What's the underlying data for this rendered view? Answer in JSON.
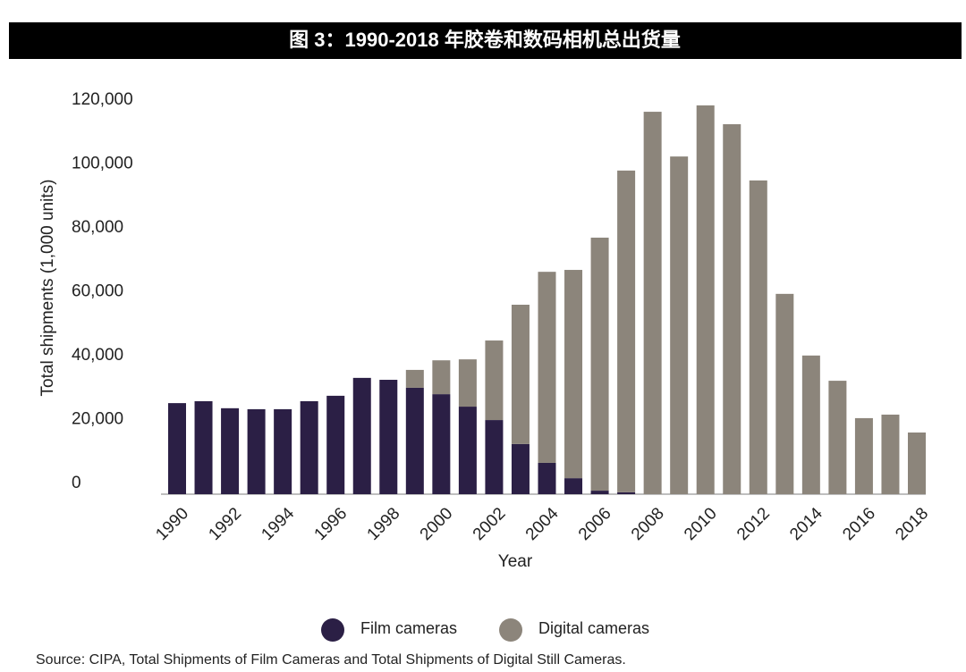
{
  "chart_data": {
    "type": "stacked-bar",
    "title": "图 3：1990-2018 年胶卷和数码相机总出货量",
    "y_label": "Total shipments (1,000 units)",
    "x_label": "Year",
    "source": "Source: CIPA, Total Shipments of Film Cameras and Total Shipments of Digital Still Cameras.",
    "categories": [
      "1990",
      null,
      "1992",
      null,
      "1994",
      null,
      "1996",
      null,
      "1998",
      null,
      "2000",
      null,
      "2002",
      null,
      "2004",
      null,
      "2006",
      null,
      "2008",
      null,
      "2010",
      null,
      "2012",
      null,
      "2014",
      null,
      "2016",
      null,
      "2018"
    ],
    "series": [
      {
        "name": "Film cameras",
        "color": "#2b1f45",
        "values": [
          28500,
          29100,
          26900,
          26600,
          26600,
          29100,
          30800,
          36400,
          35800,
          33300,
          31300,
          27400,
          23200,
          15700,
          9800,
          5000,
          1100,
          600,
          null,
          null,
          null,
          null,
          null,
          null,
          null,
          null,
          null,
          null,
          null
        ]
      },
      {
        "name": "Digital cameras",
        "color": "#8c857b",
        "values": [
          null,
          null,
          null,
          null,
          null,
          null,
          null,
          null,
          null,
          5600,
          10600,
          14800,
          24900,
          43600,
          59800,
          65200,
          79200,
          100700,
          119700,
          105700,
          121700,
          115800,
          98200,
          62700,
          43400,
          35500,
          23800,
          24900,
          19300
        ]
      }
    ],
    "ylim": [
      0,
      120000
    ],
    "yticks": [
      0,
      {
        "value": 20000,
        "label": "20,000"
      },
      {
        "value": 40000,
        "label": "40,000"
      },
      {
        "value": 60000,
        "label": "60,000"
      },
      {
        "value": 80000,
        "label": "80,000"
      },
      {
        "value": 100000,
        "label": "100,000"
      },
      {
        "value": 120000,
        "label": "120,000"
      }
    ],
    "grid": false,
    "legend": "bottom"
  }
}
